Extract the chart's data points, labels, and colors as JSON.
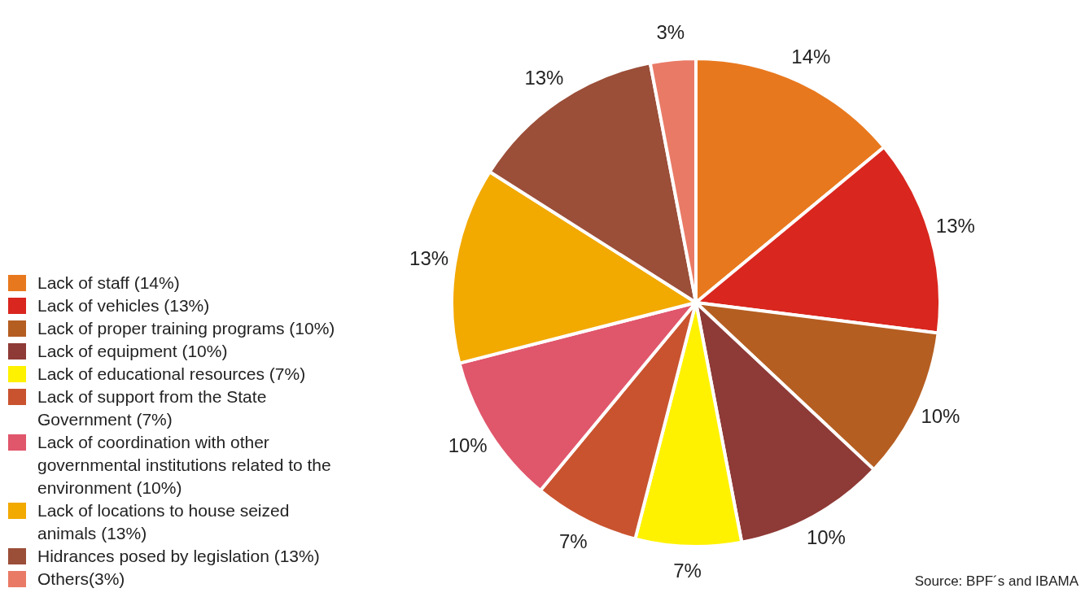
{
  "chart_data": {
    "type": "pie",
    "categories": [
      "Lack of staff (14%)",
      "Lack of vehicles (13%)",
      "Lack of proper training programs (10%)",
      "Lack of equipment (10%)",
      "Lack of educational resources (7%)",
      "Lack of support from the State Government (7%)",
      "Lack of coordination with other governmental institutions related to the environment (10%)",
      "Lack of locations to house seized animals (13%)",
      "Hidrances posed by legislation (13%)",
      "Others(3%)"
    ],
    "values": [
      14,
      13,
      10,
      10,
      7,
      7,
      10,
      13,
      13,
      3
    ],
    "value_labels": [
      "14%",
      "13%",
      "10%",
      "10%",
      "7%",
      "7%",
      "10%",
      "13%",
      "13%",
      "3%"
    ],
    "colors": [
      "#e8781e",
      "#d9261e",
      "#b55e22",
      "#8e3a36",
      "#fff200",
      "#c9532f",
      "#e0566b",
      "#f2a900",
      "#9b4e38",
      "#e97a66"
    ],
    "legend": "left",
    "annotations": [
      "Source: BPF´s and IBAMA"
    ]
  }
}
